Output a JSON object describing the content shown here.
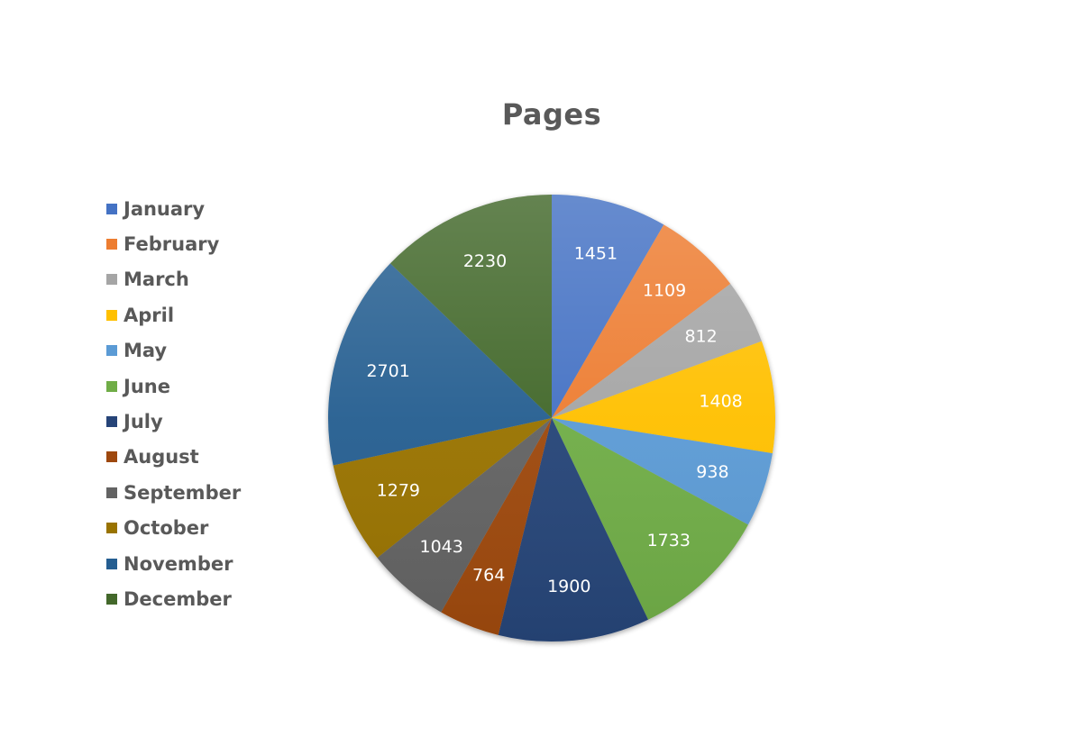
{
  "chart_data": {
    "type": "pie",
    "title": "Pages",
    "legend_position": "left",
    "categories": [
      "January",
      "February",
      "March",
      "April",
      "May",
      "June",
      "July",
      "August",
      "September",
      "October",
      "November",
      "December"
    ],
    "values": [
      1451,
      1109,
      812,
      1408,
      938,
      1733,
      1900,
      764,
      1043,
      1279,
      2701,
      2230
    ],
    "colors": [
      "#4472C4",
      "#ED7D31",
      "#A5A5A5",
      "#FFC000",
      "#5B9BD5",
      "#70AD47",
      "#264478",
      "#9E480E",
      "#636363",
      "#997300",
      "#255E91",
      "#43682B"
    ],
    "data_labels": [
      "1451",
      "1109",
      "812",
      "1408",
      "938",
      "1733",
      "1900",
      "764",
      "1043",
      "1279",
      "2701",
      "2230"
    ]
  }
}
